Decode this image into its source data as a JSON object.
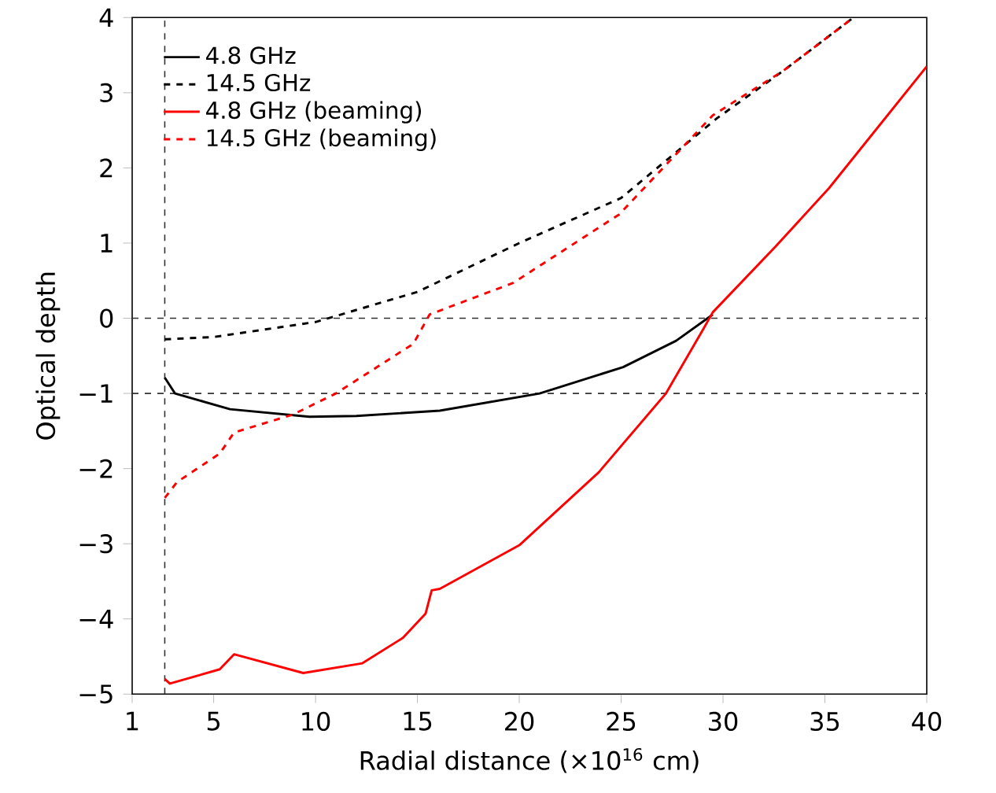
{
  "chart_data": {
    "type": "line",
    "xlabel": "Radial distance (×10$^{16}$ cm)",
    "ylabel": "Optical depth",
    "xlim": [
      1,
      40
    ],
    "ylim": [
      -5,
      4
    ],
    "xticks": [
      1,
      5,
      10,
      15,
      20,
      25,
      30,
      35,
      40
    ],
    "yticks": [
      {
        "value": -5,
        "label": "−5"
      },
      {
        "value": -4,
        "label": "−4"
      },
      {
        "value": -3,
        "label": "−3"
      },
      {
        "value": -2,
        "label": "−2"
      },
      {
        "value": -1,
        "label": "−1"
      },
      0,
      1,
      2,
      3,
      4
    ],
    "legend": "top left",
    "grid": false,
    "ref_lines": [
      {
        "axis": "y",
        "value": 0,
        "color": "#333333",
        "line_style": "dashed"
      },
      {
        "axis": "y",
        "value": -1,
        "color": "#333333",
        "line_style": "dashed"
      },
      {
        "axis": "x",
        "value": 2.6,
        "color": "#333333",
        "line_style": "dashed"
      }
    ],
    "series": [
      {
        "name": "4.8 GHz",
        "color": "#000000",
        "line_style": "solid",
        "x": [
          2.6,
          3.1,
          5.8,
          9.7,
          12,
          16.1,
          21,
          25.1,
          27.7,
          29.5
        ],
        "values": [
          -0.79,
          -1.0,
          -1.21,
          -1.31,
          -1.3,
          -1.23,
          -1.0,
          -0.65,
          -0.3,
          0.05
        ]
      },
      {
        "name": "14.5 GHz",
        "color": "#000000",
        "line_style": "dashed",
        "x": [
          2.6,
          5,
          10,
          15,
          20,
          25,
          29.7,
          33,
          36.4
        ],
        "values": [
          -0.28,
          -0.25,
          -0.05,
          0.35,
          1.0,
          1.6,
          2.66,
          3.3,
          4.0
        ]
      },
      {
        "name": "4.8 GHz (beaming)",
        "color": "#ff0000",
        "line_style": "solid",
        "x": [
          2.6,
          2.85,
          5.3,
          6,
          9.4,
          12.3,
          14.3,
          15.4,
          15.7,
          16.1,
          20,
          23.9,
          27.2,
          29,
          29.5,
          32.6,
          35.2,
          40
        ],
        "values": [
          -4.8,
          -4.86,
          -4.67,
          -4.47,
          -4.72,
          -4.59,
          -4.25,
          -3.93,
          -3.62,
          -3.6,
          -3.02,
          -2.05,
          -1.0,
          -0.16,
          0.08,
          0.96,
          1.73,
          3.35
        ]
      },
      {
        "name": "14.5 GHz (beaming)",
        "color": "#ff0000",
        "line_style": "dashed",
        "x": [
          2.6,
          3.2,
          5.3,
          6,
          8.9,
          11,
          14.8,
          15.6,
          19.7,
          24.9,
          29.5,
          33,
          36.4
        ],
        "values": [
          -2.39,
          -2.18,
          -1.8,
          -1.52,
          -1.28,
          -1.0,
          -0.34,
          0.05,
          0.47,
          1.38,
          2.7,
          3.3,
          4.0
        ]
      }
    ]
  }
}
